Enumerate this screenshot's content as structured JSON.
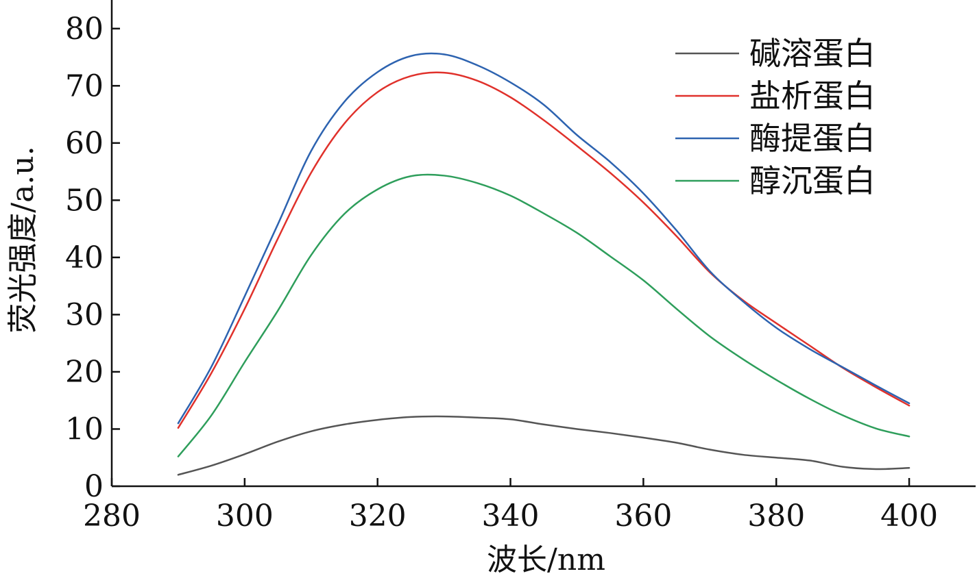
{
  "chart_data": {
    "type": "line",
    "xlabel": "波长/nm",
    "ylabel": "荧光强度/a.u.",
    "xlim": [
      280,
      410
    ],
    "ylim": [
      0,
      85
    ],
    "xticks": [
      280,
      300,
      320,
      340,
      360,
      380,
      400
    ],
    "yticks": [
      0,
      10,
      20,
      30,
      40,
      50,
      60,
      70,
      80
    ],
    "grid": false,
    "legend_position": "top-right",
    "x": [
      290,
      295,
      300,
      305,
      310,
      315,
      320,
      325,
      330,
      335,
      340,
      345,
      350,
      355,
      360,
      365,
      370,
      375,
      380,
      385,
      390,
      395,
      400
    ],
    "series": [
      {
        "name": "碱溶蛋白",
        "color": "#555555",
        "values": [
          2.0,
          3.6,
          5.6,
          7.8,
          9.6,
          10.8,
          11.6,
          12.1,
          12.2,
          12.0,
          11.7,
          10.8,
          10.0,
          9.3,
          8.5,
          7.6,
          6.4,
          5.5,
          5.0,
          4.5,
          3.4,
          3.0,
          3.2
        ]
      },
      {
        "name": "盐析蛋白",
        "color": "#e0312b",
        "values": [
          10.2,
          19.8,
          31.0,
          43.3,
          54.8,
          63.4,
          68.9,
          71.7,
          72.3,
          70.9,
          68.0,
          64.0,
          59.5,
          54.8,
          49.6,
          43.7,
          37.4,
          32.5,
          28.5,
          24.6,
          20.7,
          17.3,
          14.1
        ]
      },
      {
        "name": "酶提蛋白",
        "color": "#2d63b0",
        "values": [
          11.0,
          20.9,
          33.2,
          45.8,
          58.6,
          67.2,
          72.4,
          75.2,
          75.5,
          73.6,
          70.6,
          66.7,
          61.4,
          56.7,
          51.2,
          44.7,
          37.6,
          32.3,
          27.7,
          24.0,
          20.8,
          17.6,
          14.5
        ]
      },
      {
        "name": "醇沉蛋白",
        "color": "#2e9e5b",
        "values": [
          5.2,
          12.4,
          21.7,
          30.7,
          40.4,
          47.6,
          51.9,
          54.2,
          54.3,
          53.0,
          50.8,
          47.7,
          44.3,
          40.2,
          36.0,
          31.0,
          26.2,
          22.2,
          18.6,
          15.3,
          12.4,
          10.1,
          8.7
        ]
      }
    ]
  }
}
